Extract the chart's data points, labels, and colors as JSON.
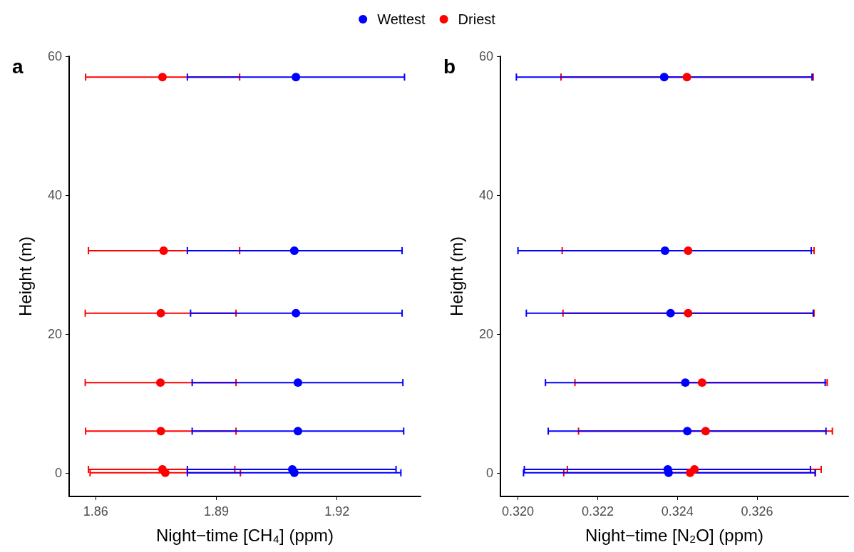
{
  "chart_data": [
    {
      "type": "scatter",
      "title": "a",
      "xlabel": "Night−time [CH₄] (ppm)",
      "ylabel": "Height (m)",
      "xlim": [
        1.8534,
        1.9408
      ],
      "xticks": [
        1.86,
        1.89,
        1.92
      ],
      "ylim": [
        -3.4,
        60
      ],
      "yticks": [
        0,
        20,
        40,
        60
      ],
      "marker": "circle",
      "legend": "top",
      "series": [
        {
          "name": "Wettest",
          "color": "#0000ff",
          "x": [
            1.9098,
            1.9094,
            1.9098,
            1.9103,
            1.9103,
            1.9089,
            1.9094
          ],
          "values": [
            57,
            32,
            23,
            13,
            6,
            0.5,
            0
          ],
          "xerrors": [
            [
              1.8828,
              1.9368
            ],
            [
              1.8828,
              1.9362
            ],
            [
              1.8836,
              1.9362
            ],
            [
              1.884,
              1.9364
            ],
            [
              1.884,
              1.9366
            ],
            [
              1.8828,
              1.9347
            ],
            [
              1.8828,
              1.9359
            ]
          ]
        },
        {
          "name": "Driest",
          "color": "#ff0000",
          "x": [
            1.8766,
            1.8769,
            1.8762,
            1.8761,
            1.8762,
            1.8766,
            1.8773
          ],
          "values": [
            57,
            32,
            23,
            13,
            6,
            0.5,
            0
          ],
          "xerrors": [
            [
              1.8575,
              1.8958
            ],
            [
              1.8582,
              1.8958
            ],
            [
              1.8574,
              1.8949
            ],
            [
              1.8574,
              1.8949
            ],
            [
              1.8575,
              1.8949
            ],
            [
              1.8582,
              1.8946
            ],
            [
              1.8586,
              1.896
            ]
          ]
        }
      ]
    },
    {
      "type": "scatter",
      "title": "b",
      "xlabel": "Night−time [N₂O] (ppm)",
      "ylabel": "Height (m)",
      "xlim": [
        0.31956,
        0.32829
      ],
      "xticks": [
        {
          "value": 0.32,
          "label": "0.320"
        },
        0.322,
        0.324,
        0.326
      ],
      "ylim": [
        -3.4,
        60
      ],
      "yticks": [
        0,
        20,
        40,
        60
      ],
      "marker": "circle",
      "legend": false,
      "series": [
        {
          "color": "#0000ff",
          "x": [
            0.32367,
            0.32369,
            0.32383,
            0.3242,
            0.32425,
            0.32376,
            0.32378
          ],
          "values": [
            57,
            32,
            23,
            13,
            6,
            0.5,
            0
          ],
          "xerrors": [
            [
              0.31996,
              0.32738
            ],
            [
              0.32,
              0.32736
            ],
            [
              0.32021,
              0.32741
            ],
            [
              0.32069,
              0.32771
            ],
            [
              0.32076,
              0.32773
            ],
            [
              0.32016,
              0.32734
            ],
            [
              0.32014,
              0.32746
            ]
          ]
        },
        {
          "color": "#ff0000",
          "x": [
            0.32424,
            0.32427,
            0.32427,
            0.32462,
            0.32471,
            0.32443,
            0.32432
          ],
          "values": [
            57,
            32,
            23,
            13,
            6,
            0.5,
            0
          ],
          "xerrors": [
            [
              0.32108,
              0.32741
            ],
            [
              0.32111,
              0.32743
            ],
            [
              0.32113,
              0.32743
            ],
            [
              0.32143,
              0.32776
            ],
            [
              0.32152,
              0.32789
            ],
            [
              0.32124,
              0.32761
            ],
            [
              0.32115,
              0.32746
            ]
          ]
        }
      ]
    }
  ]
}
